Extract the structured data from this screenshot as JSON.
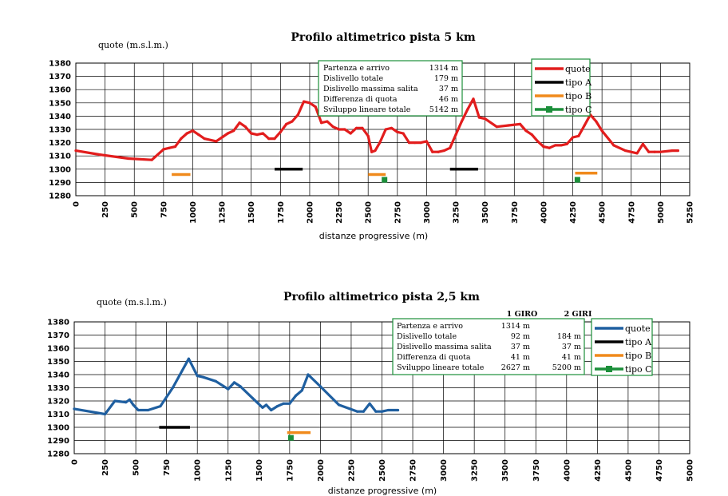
{
  "chart_data": [
    {
      "type": "line",
      "title": "Profilo altimetrico pista 5 km",
      "ylabel": "quote (m.s.l.m.)",
      "xlabel": "distanze progressive (m)",
      "xlim": [
        0,
        5250
      ],
      "ylim": [
        1280,
        1380
      ],
      "xticks": [
        "0",
        "250",
        "500",
        "750",
        "1000",
        "1250",
        "1500",
        "1750",
        "2000",
        "2250",
        "2500",
        "2750",
        "3000",
        "3250",
        "3500",
        "3750",
        "4000",
        "4250",
        "4500",
        "4750",
        "5000",
        "5250"
      ],
      "yticks": [
        "1380",
        "1370",
        "1360",
        "1350",
        "1340",
        "1330",
        "1320",
        "1310",
        "1300",
        "1290",
        "1280"
      ],
      "grid": true,
      "legend_position": "top-right",
      "series": [
        {
          "name": "quote",
          "color": "#e21d1d",
          "x": [
            0,
            200,
            450,
            650,
            750,
            800,
            850,
            900,
            950,
            1000,
            1050,
            1100,
            1200,
            1250,
            1300,
            1350,
            1400,
            1450,
            1500,
            1550,
            1600,
            1650,
            1700,
            1750,
            1800,
            1850,
            1900,
            1950,
            2000,
            2050,
            2100,
            2150,
            2200,
            2250,
            2300,
            2350,
            2400,
            2450,
            2500,
            2530,
            2560,
            2600,
            2650,
            2700,
            2750,
            2800,
            2850,
            2900,
            2950,
            3000,
            3050,
            3100,
            3150,
            3200,
            3250,
            3300,
            3350,
            3400,
            3450,
            3500,
            3600,
            3700,
            3800,
            3850,
            3900,
            3950,
            4000,
            4050,
            4100,
            4150,
            4200,
            4250,
            4300,
            4350,
            4400,
            4450,
            4500,
            4600,
            4700,
            4800,
            4850,
            4900,
            4950,
            5000,
            5100,
            5150
          ],
          "y": [
            1314,
            1311,
            1308,
            1307,
            1315,
            1316,
            1317,
            1323,
            1327,
            1329,
            1326,
            1323,
            1321,
            1324,
            1327,
            1329,
            1335,
            1332,
            1327,
            1326,
            1327,
            1323,
            1323,
            1328,
            1334,
            1336,
            1341,
            1351,
            1350,
            1347,
            1335,
            1336,
            1332,
            1330,
            1330,
            1327,
            1331,
            1331,
            1325,
            1313,
            1314,
            1320,
            1330,
            1331,
            1328,
            1327,
            1320,
            1320,
            1320,
            1321,
            1313,
            1313,
            1314,
            1316,
            1326,
            1336,
            1345,
            1353,
            1339,
            1338,
            1332,
            1333,
            1334,
            1329,
            1326,
            1321,
            1317,
            1316,
            1318,
            1318,
            1319,
            1324,
            1325,
            1333,
            1341,
            1336,
            1329,
            1318,
            1314,
            1312,
            1319,
            1313,
            1313,
            1313,
            1314,
            1314
          ]
        }
      ],
      "segments": [
        {
          "name": "tipo A",
          "color": "#000000",
          "x0": 1700,
          "x1": 1940,
          "y": 1300
        },
        {
          "name": "tipo A",
          "color": "#000000",
          "x0": 3200,
          "x1": 3440,
          "y": 1300
        },
        {
          "name": "tipo B",
          "color": "#f08a1c",
          "x0": 820,
          "x1": 980,
          "y": 1296
        },
        {
          "name": "tipo B",
          "color": "#f08a1c",
          "x0": 2500,
          "x1": 2650,
          "y": 1296
        },
        {
          "name": "tipo B",
          "color": "#f08a1c",
          "x0": 4270,
          "x1": 4460,
          "y": 1297
        }
      ],
      "markers": [
        {
          "name": "tipo C",
          "color": "#1b8f3a",
          "x": 2640,
          "y": 1292
        },
        {
          "name": "tipo C",
          "color": "#1b8f3a",
          "x": 4290,
          "y": 1292
        }
      ],
      "legend": [
        {
          "label": "quote",
          "color": "#e21d1d",
          "kind": "line"
        },
        {
          "label": "tipo A",
          "color": "#000000",
          "kind": "line"
        },
        {
          "label": "tipo B",
          "color": "#f08a1c",
          "kind": "line"
        },
        {
          "label": "tipo C",
          "color": "#1b8f3a",
          "kind": "marker"
        }
      ],
      "info_table": {
        "headers": [],
        "rows": [
          [
            "Partenza e arrivo",
            "1314 m"
          ],
          [
            "Dislivello totale",
            "179 m"
          ],
          [
            "Dislivello massima salita",
            "37 m"
          ],
          [
            "Differenza di quota",
            "46 m"
          ],
          [
            "Sviluppo lineare totale",
            "5142 m"
          ]
        ]
      }
    },
    {
      "type": "line",
      "title": "Profilo altimetrico pista 2,5 km",
      "ylabel": "quote (m.s.l.m.)",
      "xlabel": "distanze progressive (m)",
      "xlim": [
        0,
        5000
      ],
      "ylim": [
        1280,
        1380
      ],
      "xticks": [
        "0",
        "250",
        "500",
        "750",
        "1000",
        "1250",
        "1500",
        "1750",
        "2000",
        "2250",
        "2500",
        "2750",
        "3000",
        "3250",
        "3500",
        "3750",
        "4000",
        "4250",
        "4500",
        "4750",
        "5000"
      ],
      "yticks": [
        "1380",
        "1370",
        "1360",
        "1350",
        "1340",
        "1330",
        "1320",
        "1310",
        "1300",
        "1290",
        "1280"
      ],
      "grid": true,
      "legend_position": "top-right",
      "series": [
        {
          "name": "quote",
          "color": "#1f5fa0",
          "x": [
            0,
            250,
            330,
            420,
            450,
            480,
            520,
            600,
            700,
            800,
            930,
            1000,
            1050,
            1150,
            1250,
            1300,
            1350,
            1450,
            1530,
            1560,
            1600,
            1650,
            1700,
            1750,
            1800,
            1850,
            1900,
            2000,
            2150,
            2300,
            2350,
            2400,
            2450,
            2500,
            2550,
            2630
          ],
          "y": [
            1314,
            1310,
            1320,
            1319,
            1321,
            1317,
            1313,
            1313,
            1316,
            1330,
            1352,
            1339,
            1338,
            1335,
            1329,
            1334,
            1331,
            1322,
            1315,
            1317,
            1313,
            1316,
            1318,
            1318,
            1324,
            1328,
            1340,
            1331,
            1317,
            1312,
            1312,
            1318,
            1312,
            1312,
            1313,
            1313
          ]
        }
      ],
      "segments": [
        {
          "name": "tipo A",
          "color": "#000000",
          "x0": 690,
          "x1": 940,
          "y": 1300
        },
        {
          "name": "tipo B",
          "color": "#f08a1c",
          "x0": 1730,
          "x1": 1920,
          "y": 1296
        }
      ],
      "markers": [
        {
          "name": "tipo C",
          "color": "#1b8f3a",
          "x": 1760,
          "y": 1292
        }
      ],
      "legend": [
        {
          "label": "quote",
          "color": "#1f5fa0",
          "kind": "line"
        },
        {
          "label": "tipo A",
          "color": "#000000",
          "kind": "line"
        },
        {
          "label": "tipo B",
          "color": "#f08a1c",
          "kind": "line"
        },
        {
          "label": "tipo C",
          "color": "#1b8f3a",
          "kind": "marker"
        }
      ],
      "info_table": {
        "headers": [
          "1 GIRO",
          "2 GIRI"
        ],
        "rows": [
          [
            "Partenza e arrivo",
            "1314 m",
            ""
          ],
          [
            "Dislivello totale",
            "92 m",
            "184 m"
          ],
          [
            "Dislivello massima salita",
            "37 m",
            "37 m"
          ],
          [
            "Differenza di quota",
            "41 m",
            "41 m"
          ],
          [
            "Sviluppo lineare totale",
            "2627 m",
            "5200 m"
          ]
        ]
      }
    }
  ]
}
